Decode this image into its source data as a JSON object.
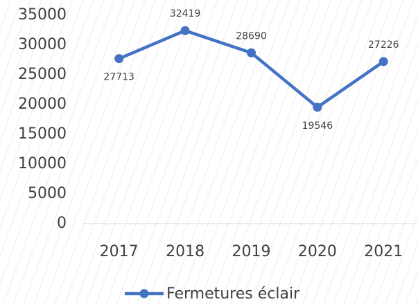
{
  "chart_data": {
    "type": "line",
    "categories": [
      "2017",
      "2018",
      "2019",
      "2020",
      "2021"
    ],
    "series": [
      {
        "name": "Fermetures éclair",
        "color": "#4472c4",
        "values": [
          27713,
          32419,
          28690,
          19546,
          27226
        ]
      }
    ],
    "ylim": [
      0,
      35000
    ],
    "yticks": [
      0,
      5000,
      10000,
      15000,
      20000,
      25000,
      30000,
      35000
    ],
    "grid": false,
    "legend": "bottom"
  }
}
